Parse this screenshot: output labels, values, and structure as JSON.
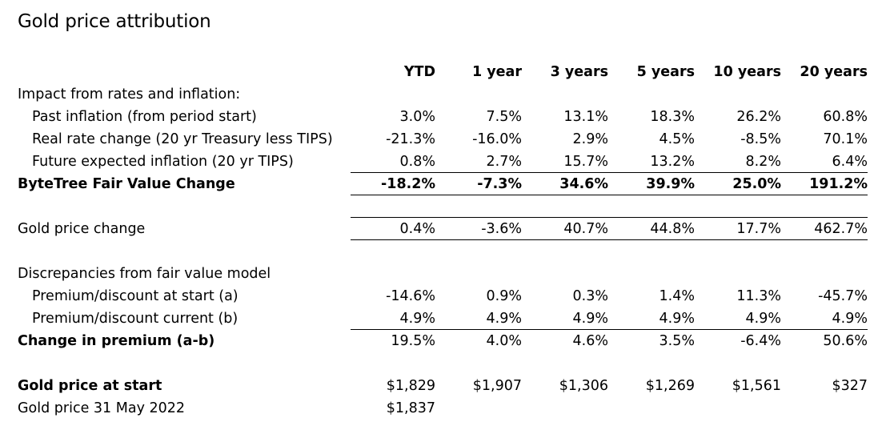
{
  "title": "Gold price attribution",
  "columns": [
    "YTD",
    "1 year",
    "3 years",
    "5 years",
    "10 years",
    "20 years"
  ],
  "rows": [
    {
      "label": "Impact from rates and inflation:",
      "values": []
    },
    {
      "label": "Past inflation (from period start)",
      "values": [
        "3.0%",
        "7.5%",
        "13.1%",
        "18.3%",
        "26.2%",
        "60.8%"
      ]
    },
    {
      "label": "Real rate change (20 yr Treasury less TIPS)",
      "values": [
        "-21.3%",
        "-16.0%",
        "2.9%",
        "4.5%",
        "-8.5%",
        "70.1%"
      ]
    },
    {
      "label": "Future expected inflation (20 yr TIPS)",
      "values": [
        "0.8%",
        "2.7%",
        "15.7%",
        "13.2%",
        "8.2%",
        "6.4%"
      ]
    },
    {
      "label": "ByteTree Fair Value Change",
      "values": [
        "-18.2%",
        "-7.3%",
        "34.6%",
        "39.9%",
        "25.0%",
        "191.2%"
      ]
    },
    {
      "label": "Gold price change",
      "values": [
        "0.4%",
        "-3.6%",
        "40.7%",
        "44.8%",
        "17.7%",
        "462.7%"
      ]
    },
    {
      "label": "Discrepancies from fair value model",
      "values": []
    },
    {
      "label": "Premium/discount at start (a)",
      "values": [
        "-14.6%",
        "0.9%",
        "0.3%",
        "1.4%",
        "11.3%",
        "-45.7%"
      ]
    },
    {
      "label": "Premium/discount current (b)",
      "values": [
        "4.9%",
        "4.9%",
        "4.9%",
        "4.9%",
        "4.9%",
        "4.9%"
      ]
    },
    {
      "label": "Change in premium (a-b)",
      "values": [
        "19.5%",
        "4.0%",
        "4.6%",
        "3.5%",
        "-6.4%",
        "50.6%"
      ]
    },
    {
      "label": "Gold price at start",
      "values": [
        "$1,829",
        "$1,907",
        "$1,306",
        "$1,269",
        "$1,561",
        "$327"
      ]
    },
    {
      "label": "Gold price 31 May 2022",
      "values": [
        "$1,837"
      ]
    }
  ]
}
